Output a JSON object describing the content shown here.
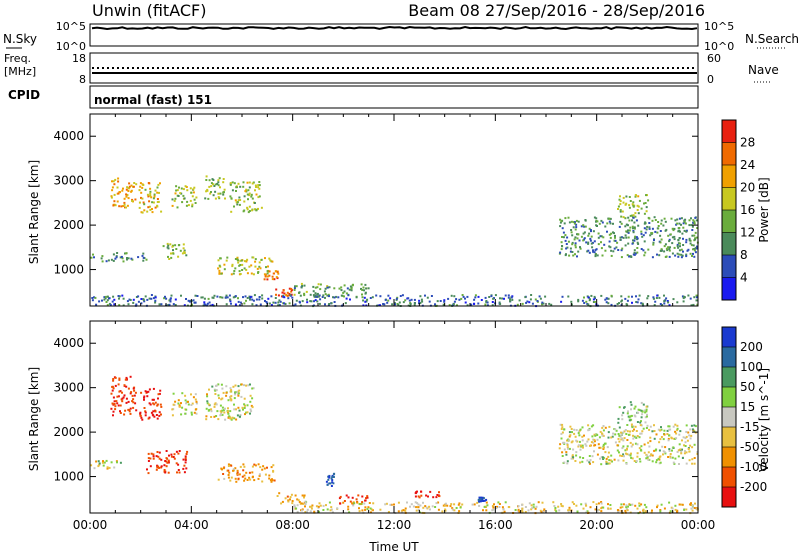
{
  "header": {
    "left_title": "Unwin (fitACF)",
    "right_title": "Beam 08  27/Sep/2016 - 28/Sep/2016"
  },
  "top_panels": {
    "nsky_label": "N.Sky",
    "nsearch_label": "N.Search",
    "nsky_ticks": [
      "10^5",
      "10^0"
    ],
    "nsearch_ticks": [
      "10^5",
      "10^0"
    ],
    "freq_label_1": "Freq.",
    "freq_label_2": "[MHz]",
    "freq_ticks": [
      "18",
      "8"
    ],
    "nave_label": "Nave",
    "nave_ticks": [
      "60",
      "0"
    ],
    "cpid_label": "CPID",
    "cpid_value": "normal (fast) 151"
  },
  "chart_data": [
    {
      "type": "heatmap",
      "panel": "power",
      "title": "",
      "xlabel": "",
      "ylabel": "Slant Range [km]",
      "xlim": [
        0,
        24
      ],
      "ylim": [
        180,
        4500
      ],
      "y_ticks": [
        1000,
        2000,
        3000,
        4000
      ],
      "colorbar_label": "Power [dB]",
      "colorbar_ticks": [
        4,
        8,
        12,
        16,
        20,
        24,
        28
      ],
      "colorbar_colors": [
        "#1a1af0",
        "#2c4cb8",
        "#4a8a5a",
        "#6aac3c",
        "#c8c820",
        "#f0a000",
        "#f06a00",
        "#e82010"
      ],
      "blobs": [
        {
          "t0": 0.8,
          "t1": 1.8,
          "r0": 2400,
          "r1": 3100,
          "v": 22
        },
        {
          "t0": 1.9,
          "t1": 2.8,
          "r0": 2300,
          "r1": 3000,
          "v": 20
        },
        {
          "t0": 3.2,
          "t1": 4.2,
          "r0": 2400,
          "r1": 2900,
          "v": 16
        },
        {
          "t0": 4.5,
          "t1": 5.3,
          "r0": 2600,
          "r1": 3200,
          "v": 14
        },
        {
          "t0": 5.5,
          "t1": 6.8,
          "r0": 2300,
          "r1": 3000,
          "v": 16
        },
        {
          "t0": 0.0,
          "t1": 2.2,
          "r0": 1200,
          "r1": 1400,
          "v": 10
        },
        {
          "t0": 2.8,
          "t1": 3.8,
          "r0": 1250,
          "r1": 1600,
          "v": 14
        },
        {
          "t0": 5.0,
          "t1": 7.2,
          "r0": 900,
          "r1": 1300,
          "v": 18
        },
        {
          "t0": 6.8,
          "t1": 7.4,
          "r0": 800,
          "r1": 1000,
          "v": 26
        },
        {
          "t0": 7.3,
          "t1": 8.0,
          "r0": 400,
          "r1": 600,
          "v": 28
        },
        {
          "t0": 8.0,
          "t1": 11.0,
          "r0": 400,
          "r1": 700,
          "v": 12
        },
        {
          "t0": 18.5,
          "t1": 24.0,
          "r0": 1300,
          "r1": 2200,
          "v": 10
        },
        {
          "t0": 20.8,
          "t1": 22.0,
          "r0": 2200,
          "r1": 2700,
          "v": 16
        },
        {
          "t0": 0.0,
          "t1": 24.0,
          "r0": 200,
          "r1": 450,
          "v": 8
        }
      ]
    },
    {
      "type": "heatmap",
      "panel": "velocity",
      "title": "",
      "xlabel": "Time UT",
      "ylabel": "Slant Range [km]",
      "xlim": [
        0,
        24
      ],
      "ylim": [
        180,
        4500
      ],
      "x_ticks": [
        "00:00",
        "04:00",
        "08:00",
        "12:00",
        "16:00",
        "20:00",
        "00:00"
      ],
      "y_ticks": [
        1000,
        2000,
        3000,
        4000
      ],
      "colorbar_label": "Velocity [m s^-1]",
      "colorbar_ticks": [
        200,
        100,
        50,
        15,
        -15,
        -50,
        -100,
        -200
      ],
      "colorbar_colors": [
        "#1a3ad0",
        "#2a6aa0",
        "#4a9a60",
        "#80d040",
        "#c8c8c0",
        "#e8c040",
        "#f09000",
        "#f05000",
        "#e81010"
      ],
      "blobs": [
        {
          "t0": 0.8,
          "t1": 1.8,
          "r0": 2400,
          "r1": 3300,
          "v": -200
        },
        {
          "t0": 1.9,
          "t1": 2.8,
          "r0": 2300,
          "r1": 3000,
          "v": -200
        },
        {
          "t0": 3.2,
          "t1": 4.2,
          "r0": 2400,
          "r1": 2900,
          "v": -20
        },
        {
          "t0": 4.5,
          "t1": 6.5,
          "r0": 2300,
          "r1": 3100,
          "v": 0
        },
        {
          "t0": 0.0,
          "t1": 1.2,
          "r0": 1200,
          "r1": 1400,
          "v": 0
        },
        {
          "t0": 2.2,
          "t1": 3.8,
          "r0": 1100,
          "r1": 1600,
          "v": -180
        },
        {
          "t0": 5.0,
          "t1": 7.3,
          "r0": 900,
          "r1": 1300,
          "v": -70
        },
        {
          "t0": 7.3,
          "t1": 8.5,
          "r0": 400,
          "r1": 650,
          "v": -60
        },
        {
          "t0": 9.3,
          "t1": 9.6,
          "r0": 800,
          "r1": 1100,
          "v": 200
        },
        {
          "t0": 9.8,
          "t1": 11.0,
          "r0": 400,
          "r1": 600,
          "v": -200
        },
        {
          "t0": 12.8,
          "t1": 13.8,
          "r0": 550,
          "r1": 700,
          "v": -200
        },
        {
          "t0": 15.3,
          "t1": 15.6,
          "r0": 450,
          "r1": 550,
          "v": 220
        },
        {
          "t0": 18.5,
          "t1": 24.0,
          "r0": 1300,
          "r1": 2200,
          "v": 0
        },
        {
          "t0": 20.8,
          "t1": 22.0,
          "r0": 2200,
          "r1": 2700,
          "v": 40
        },
        {
          "t0": 8.0,
          "t1": 24.0,
          "r0": 200,
          "r1": 450,
          "v": -30
        }
      ]
    }
  ]
}
